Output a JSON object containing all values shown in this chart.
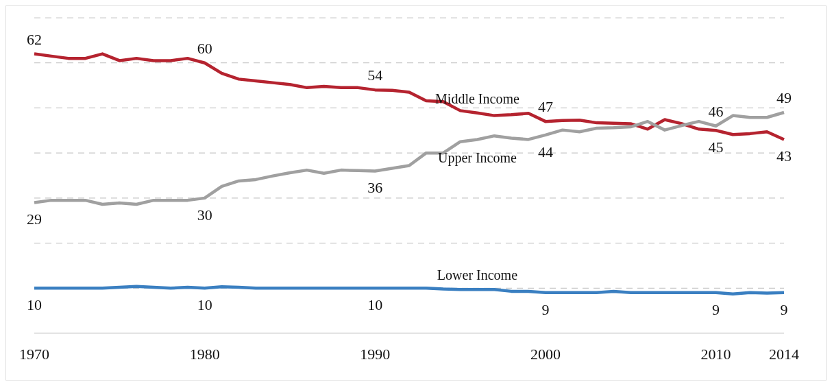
{
  "chart_data": {
    "type": "line",
    "x": [
      1970,
      1971,
      1972,
      1973,
      1974,
      1975,
      1976,
      1977,
      1978,
      1979,
      1980,
      1981,
      1982,
      1983,
      1984,
      1985,
      1986,
      1987,
      1988,
      1989,
      1990,
      1991,
      1992,
      1993,
      1994,
      1995,
      1996,
      1997,
      1998,
      1999,
      2000,
      2001,
      2002,
      2003,
      2004,
      2005,
      2006,
      2007,
      2008,
      2009,
      2010,
      2011,
      2012,
      2013,
      2014
    ],
    "xlim": [
      1970,
      2014
    ],
    "xticks": [
      1970,
      1980,
      1990,
      2000,
      2010,
      2014
    ],
    "ylim": [
      0,
      70
    ],
    "yticks": [
      {
        "value": 10,
        "label": null
      },
      {
        "value": 20,
        "label": null
      },
      {
        "value": 30,
        "label": null
      },
      {
        "value": 40,
        "label": null
      },
      {
        "value": 50,
        "label": null
      },
      {
        "value": 60,
        "label": null
      },
      {
        "value": 70,
        "label": null
      }
    ],
    "grid": "y",
    "tick_labels": "x",
    "line_style": "solid",
    "marker": "none",
    "series": [
      {
        "name": "Middle Income",
        "color": "#b5232f",
        "values": [
          62,
          61.5,
          61,
          61,
          62,
          60.5,
          61,
          60.5,
          60.5,
          61,
          60,
          57.7,
          56.4,
          56,
          55.6,
          55.2,
          54.5,
          54.8,
          54.5,
          54.5,
          54,
          53.9,
          53.5,
          51.6,
          51.4,
          49.4,
          48.9,
          48.3,
          48.5,
          48.8,
          47,
          47.2,
          47.3,
          46.7,
          46.6,
          46.5,
          45.3,
          47.4,
          46.5,
          45.3,
          45,
          44.1,
          44.3,
          44.7,
          43
        ],
        "value_labels": [
          "62",
          null,
          null,
          null,
          null,
          null,
          null,
          null,
          null,
          null,
          "60",
          null,
          null,
          null,
          null,
          null,
          null,
          null,
          null,
          null,
          "54",
          null,
          null,
          null,
          null,
          null,
          null,
          null,
          null,
          null,
          "47",
          null,
          null,
          null,
          null,
          null,
          null,
          null,
          null,
          null,
          "45",
          null,
          null,
          null,
          "43"
        ]
      },
      {
        "name": "Upper Income",
        "color": "#a0a0a0",
        "values": [
          29,
          29.5,
          29.5,
          29.5,
          28.6,
          28.9,
          28.6,
          29.5,
          29.5,
          29.5,
          30,
          32.6,
          33.8,
          34.1,
          34.9,
          35.6,
          36.2,
          35.5,
          36.2,
          36.1,
          36,
          36.6,
          37.2,
          40,
          40,
          42.5,
          43,
          43.8,
          43.3,
          43,
          44,
          45.1,
          44.7,
          45.5,
          45.6,
          45.8,
          47,
          45.1,
          46.1,
          47,
          46,
          48.3,
          47.9,
          47.9,
          49
        ],
        "value_labels": [
          "29",
          null,
          null,
          null,
          null,
          null,
          null,
          null,
          null,
          null,
          "30",
          null,
          null,
          null,
          null,
          null,
          null,
          null,
          null,
          null,
          "36",
          null,
          null,
          null,
          null,
          null,
          null,
          null,
          null,
          null,
          "44",
          null,
          null,
          null,
          null,
          null,
          null,
          null,
          null,
          null,
          "46",
          null,
          null,
          null,
          "49"
        ]
      },
      {
        "name": "Lower Income",
        "color": "#3a7fc1",
        "values": [
          10,
          10,
          10,
          10,
          10,
          10.2,
          10.4,
          10.2,
          10,
          10.2,
          10,
          10.3,
          10.2,
          10,
          10,
          10,
          10,
          10,
          10,
          10,
          10,
          10,
          10,
          10,
          9.8,
          9.7,
          9.7,
          9.7,
          9.3,
          9.3,
          9,
          9,
          9,
          9,
          9.3,
          9,
          9,
          9,
          9,
          9,
          9,
          8.7,
          9,
          8.9,
          9
        ],
        "value_labels": [
          "10",
          null,
          null,
          null,
          null,
          null,
          null,
          null,
          null,
          null,
          "10",
          null,
          null,
          null,
          null,
          null,
          null,
          null,
          null,
          null,
          "10",
          null,
          null,
          null,
          null,
          null,
          null,
          null,
          null,
          null,
          "9",
          null,
          null,
          null,
          null,
          null,
          null,
          null,
          null,
          null,
          "9",
          null,
          null,
          null,
          "9"
        ]
      }
    ]
  }
}
